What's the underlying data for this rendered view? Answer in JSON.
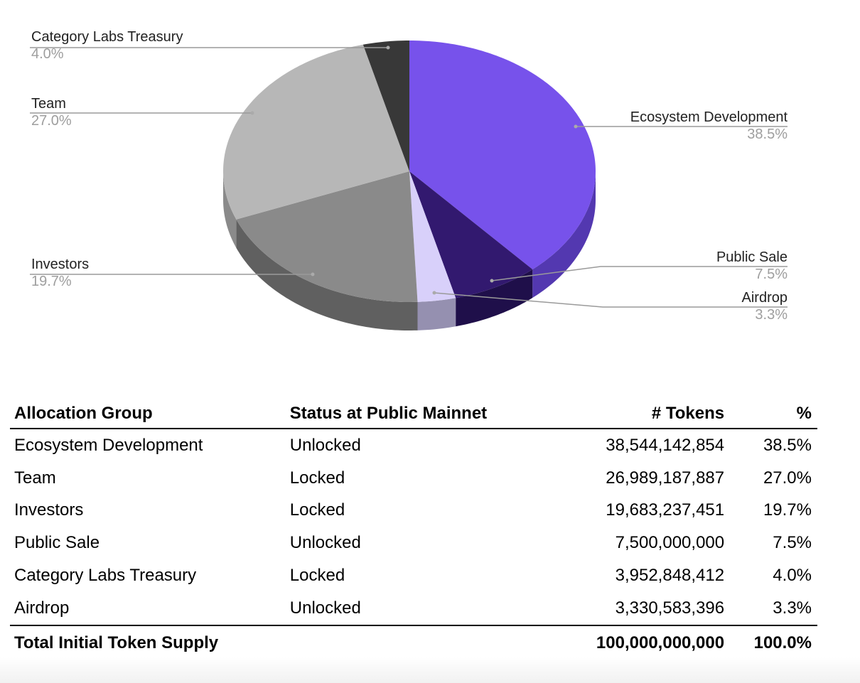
{
  "chart_data": {
    "type": "pie",
    "style": "3d",
    "slices": [
      {
        "label": "Ecosystem Development",
        "value": 38.5,
        "pct_label": "38.5%",
        "color": "#7752eb",
        "side_color": "#5338b0"
      },
      {
        "label": "Public Sale",
        "value": 7.5,
        "pct_label": "7.5%",
        "color": "#32196f",
        "side_color": "#1f0f4a"
      },
      {
        "label": "Airdrop",
        "value": 3.3,
        "pct_label": "3.3%",
        "color": "#d8d0fa",
        "side_color": "#9590b0"
      },
      {
        "label": "Investors",
        "value": 19.7,
        "pct_label": "19.7%",
        "color": "#8a8a8a",
        "side_color": "#606060"
      },
      {
        "label": "Team",
        "value": 27.0,
        "pct_label": "27.0%",
        "color": "#b7b7b7",
        "side_color": "#8a8a8a"
      },
      {
        "label": "Category Labs Treasury",
        "value": 4.0,
        "pct_label": "4.0%",
        "color": "#383838",
        "side_color": "#262626"
      }
    ]
  },
  "table": {
    "headers": [
      "Allocation Group",
      "Status at Public Mainnet",
      "# Tokens",
      "%"
    ],
    "rows": [
      [
        "Ecosystem Development",
        "Unlocked",
        "38,544,142,854",
        "38.5%"
      ],
      [
        "Team",
        "Locked",
        "26,989,187,887",
        "27.0%"
      ],
      [
        "Investors",
        "Locked",
        "19,683,237,451",
        "19.7%"
      ],
      [
        "Public Sale",
        "Unlocked",
        "7,500,000,000",
        "7.5%"
      ],
      [
        "Category Labs Treasury",
        "Locked",
        "3,952,848,412",
        "4.0%"
      ],
      [
        "Airdrop",
        "Unlocked",
        "3,330,583,396",
        "3.3%"
      ]
    ],
    "total": [
      "Total Initial Token Supply",
      "",
      "100,000,000,000",
      "100.0%"
    ]
  }
}
